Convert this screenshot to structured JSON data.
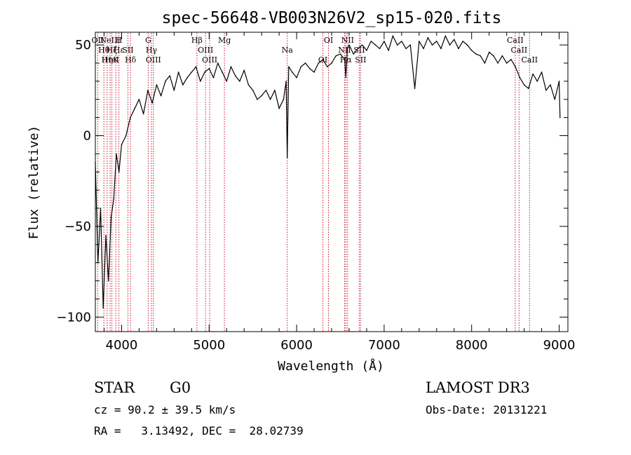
{
  "chart_data": {
    "type": "line",
    "title": "spec-56648-VB003N26V2_sp15-020.fits",
    "xlabel": "Wavelength (Å)",
    "ylabel": "Flux (relative)",
    "xlim": [
      3700,
      9100
    ],
    "ylim": [
      -108,
      57
    ],
    "xticks": [
      4000,
      5000,
      6000,
      7000,
      8000,
      9000
    ],
    "xtick_labels": [
      "4000",
      "5000",
      "6000",
      "7000",
      "8000",
      "9000"
    ],
    "yticks": [
      -100,
      -50,
      0,
      50
    ],
    "ytick_labels": [
      "−100",
      "−50",
      "0",
      "50"
    ],
    "grid": false,
    "series": [
      {
        "color": "#000000",
        "x": [
          3700,
          3730,
          3760,
          3790,
          3820,
          3850,
          3880,
          3910,
          3940,
          3970,
          4000,
          4050,
          4100,
          4150,
          4200,
          4250,
          4300,
          4350,
          4400,
          4450,
          4500,
          4550,
          4600,
          4650,
          4700,
          4750,
          4800,
          4850,
          4900,
          4950,
          5000,
          5050,
          5100,
          5150,
          5200,
          5250,
          5300,
          5350,
          5400,
          5450,
          5500,
          5550,
          5600,
          5650,
          5700,
          5750,
          5800,
          5850,
          5880,
          5893,
          5910,
          5950,
          6000,
          6050,
          6100,
          6150,
          6200,
          6250,
          6300,
          6350,
          6400,
          6450,
          6500,
          6550,
          6563,
          6580,
          6600,
          6650,
          6700,
          6750,
          6800,
          6850,
          6900,
          6950,
          7000,
          7050,
          7100,
          7150,
          7200,
          7250,
          7300,
          7350,
          7400,
          7450,
          7500,
          7550,
          7600,
          7650,
          7700,
          7750,
          7800,
          7850,
          7900,
          7950,
          8000,
          8050,
          8100,
          8150,
          8200,
          8250,
          8300,
          8350,
          8400,
          8450,
          8500,
          8550,
          8600,
          8650,
          8700,
          8750,
          8800,
          8850,
          8900,
          8950,
          9000,
          9010
        ],
        "y": [
          -15,
          -70,
          -40,
          -95,
          -55,
          -80,
          -45,
          -35,
          -10,
          -20,
          -5,
          0,
          10,
          15,
          20,
          12,
          25,
          18,
          28,
          22,
          30,
          33,
          25,
          35,
          28,
          32,
          35,
          38,
          30,
          35,
          37,
          32,
          40,
          35,
          30,
          38,
          33,
          30,
          36,
          28,
          25,
          20,
          22,
          25,
          20,
          25,
          15,
          20,
          30,
          -12,
          38,
          35,
          32,
          38,
          40,
          37,
          35,
          40,
          42,
          38,
          40,
          44,
          45,
          42,
          32,
          48,
          50,
          45,
          48,
          50,
          47,
          52,
          50,
          48,
          52,
          47,
          55,
          50,
          52,
          48,
          50,
          26,
          52,
          48,
          54,
          50,
          52,
          48,
          55,
          50,
          53,
          48,
          52,
          50,
          47,
          45,
          44,
          40,
          46,
          44,
          40,
          44,
          40,
          42,
          38,
          32,
          28,
          26,
          34,
          30,
          35,
          25,
          28,
          20,
          30,
          10
        ]
      }
    ],
    "lines": [
      {
        "x": 3727,
        "labels": [
          "OII"
        ]
      },
      {
        "x": 3798,
        "labels": [
          "Hθ"
        ]
      },
      {
        "x": 3835,
        "labels": [
          "Hη"
        ]
      },
      {
        "x": 3869,
        "labels": [
          "NeIII"
        ]
      },
      {
        "x": 3889,
        "labels": [
          "Hζ",
          "HeI"
        ]
      },
      {
        "x": 3934,
        "labels": [
          "K"
        ]
      },
      {
        "x": 3969,
        "labels": [
          "H",
          "Hε"
        ]
      },
      {
        "x": 4072,
        "labels": [
          "SII"
        ]
      },
      {
        "x": 4102,
        "labels": [
          "Hδ"
        ]
      },
      {
        "x": 4304,
        "labels": [
          "G"
        ]
      },
      {
        "x": 4341,
        "labels": [
          "Hγ"
        ]
      },
      {
        "x": 4363,
        "labels": [
          "OIII"
        ]
      },
      {
        "x": 4861,
        "labels": [
          "Hβ"
        ]
      },
      {
        "x": 4959,
        "labels": [
          "OIII"
        ]
      },
      {
        "x": 5007,
        "labels": [
          "OIII"
        ]
      },
      {
        "x": 5175,
        "labels": [
          "Mg"
        ]
      },
      {
        "x": 5893,
        "labels": [
          "Na"
        ]
      },
      {
        "x": 6300,
        "labels": [
          "OI"
        ]
      },
      {
        "x": 6364,
        "labels": [
          "OI"
        ]
      },
      {
        "x": 6548,
        "labels": [
          "NII"
        ]
      },
      {
        "x": 6563,
        "labels": [
          "Hα"
        ]
      },
      {
        "x": 6583,
        "labels": [
          "NII"
        ]
      },
      {
        "x": 6716,
        "labels": [
          "SII"
        ]
      },
      {
        "x": 6731,
        "labels": [
          "SII"
        ]
      },
      {
        "x": 8498,
        "labels": [
          "CaII"
        ]
      },
      {
        "x": 8542,
        "labels": [
          "CaII"
        ]
      },
      {
        "x": 8662,
        "labels": [
          "CaII"
        ]
      }
    ]
  },
  "info": {
    "class": "STAR",
    "subclass": "G0",
    "survey": "LAMOST DR3",
    "cz": "cz = 90.2 ± 39.5 km/s",
    "obs_date": "Obs-Date: 20131221",
    "radec": "RA =   3.13492, DEC =  28.02739"
  }
}
